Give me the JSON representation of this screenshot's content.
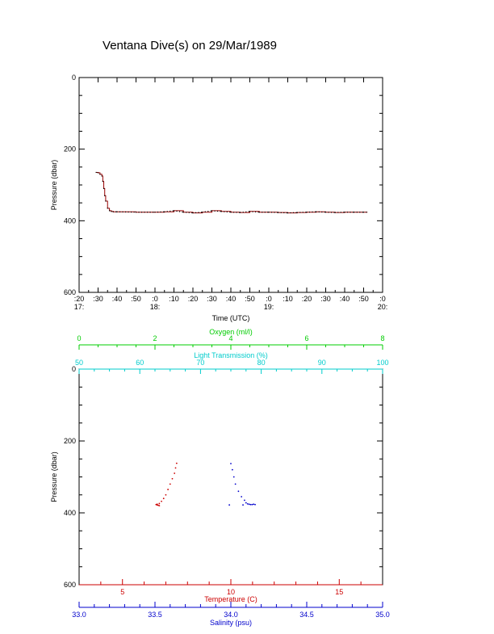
{
  "title": "Ventana Dive(s) on 29/Mar/1989",
  "colors": {
    "axis": "#000000",
    "temperature": "#cc0000",
    "salinity": "#0000cc",
    "oxygen": "#00cc00",
    "light_transmission": "#00cccc",
    "dive_track": "#990000"
  },
  "chart_data": [
    {
      "type": "line",
      "title": "",
      "xlabel": "Time (UTC)",
      "ylabel": "Pressure (dbar)",
      "x_unit": "minutes since 17:00 UTC",
      "xlim": [
        17.33,
        20.0
      ],
      "ylim": [
        600,
        0
      ],
      "y_ticks": [
        "0",
        "200",
        "400",
        "600"
      ],
      "x_ticks": [
        {
          "minute": ":20",
          "hour": "17:",
          "t": 20
        },
        {
          "minute": ":30",
          "hour": "",
          "t": 30
        },
        {
          "minute": ":40",
          "hour": "",
          "t": 40
        },
        {
          "minute": ":50",
          "hour": "",
          "t": 50
        },
        {
          "minute": ":0",
          "hour": "18:",
          "t": 60
        },
        {
          "minute": ":10",
          "hour": "",
          "t": 70
        },
        {
          "minute": ":20",
          "hour": "",
          "t": 80
        },
        {
          "minute": ":30",
          "hour": "",
          "t": 90
        },
        {
          "minute": ":40",
          "hour": "",
          "t": 100
        },
        {
          "minute": ":50",
          "hour": "",
          "t": 110
        },
        {
          "minute": ":0",
          "hour": "19:",
          "t": 120
        },
        {
          "minute": ":10",
          "hour": "",
          "t": 130
        },
        {
          "minute": ":20",
          "hour": "",
          "t": 140
        },
        {
          "minute": ":30",
          "hour": "",
          "t": 150
        },
        {
          "minute": ":40",
          "hour": "",
          "t": 160
        },
        {
          "minute": ":50",
          "hour": "",
          "t": 170
        },
        {
          "minute": ":0",
          "hour": "20:",
          "t": 180
        }
      ],
      "series": [
        {
          "name": "",
          "x_minutes": [
            29,
            30,
            31,
            32,
            32.5,
            33,
            33.5,
            34,
            35,
            36,
            37,
            38,
            40,
            50,
            60,
            65,
            70,
            75,
            80,
            85,
            90,
            95,
            100,
            105,
            110,
            115,
            120,
            125,
            130,
            135,
            140,
            145,
            150,
            155,
            160,
            165,
            170,
            172
          ],
          "pressure": [
            265,
            266,
            270,
            275,
            290,
            310,
            330,
            345,
            365,
            372,
            374,
            375,
            375,
            376,
            376,
            375,
            372,
            376,
            378,
            376,
            372,
            374,
            376,
            377,
            374,
            376,
            376,
            377,
            378,
            377,
            376,
            375,
            376,
            377,
            376,
            376,
            376,
            376
          ]
        }
      ]
    },
    {
      "type": "scatter",
      "title": "",
      "ylabel": "Pressure (dbar)",
      "ylim": [
        600,
        0
      ],
      "y_ticks": [
        "0",
        "200",
        "400",
        "600"
      ],
      "axes": {
        "oxygen": {
          "label": "Oxygen (ml/l)",
          "lim": [
            0,
            8
          ],
          "ticks": [
            "0",
            "2",
            "4",
            "6",
            "8"
          ]
        },
        "light_transmission": {
          "label": "Light Transmission (%)",
          "lim": [
            50,
            100
          ],
          "ticks": [
            "50",
            "60",
            "70",
            "80",
            "90",
            "100"
          ]
        },
        "temperature": {
          "label": "Temperature (C)",
          "lim": [
            3.0,
            17.0
          ],
          "ticks": [
            "5",
            "10",
            "15"
          ]
        },
        "salinity": {
          "label": "Salinity (psu)",
          "lim": [
            33.0,
            35.0
          ],
          "ticks": [
            "33.0",
            "33.5",
            "34.0",
            "34.5",
            "35.0"
          ]
        }
      },
      "series": [
        {
          "name": "Temperature (C)",
          "x": [
            7.5,
            7.45,
            7.4,
            7.3,
            7.2,
            7.1,
            7.0,
            6.9,
            6.8,
            6.7,
            6.6,
            6.55,
            6.6,
            6.65,
            6.7
          ],
          "pressure": [
            262,
            275,
            290,
            305,
            320,
            335,
            350,
            360,
            368,
            374,
            376,
            377,
            378,
            379,
            380
          ]
        },
        {
          "name": "Salinity (psu)",
          "x": [
            34.0,
            34.01,
            34.02,
            34.03,
            34.05,
            34.07,
            34.09,
            34.1,
            34.11,
            34.12,
            34.13,
            34.14,
            34.15,
            34.16,
            34.08,
            33.99
          ],
          "pressure": [
            263,
            280,
            300,
            320,
            340,
            355,
            365,
            372,
            375,
            376,
            377,
            377,
            376,
            377,
            378,
            378
          ]
        }
      ]
    }
  ]
}
